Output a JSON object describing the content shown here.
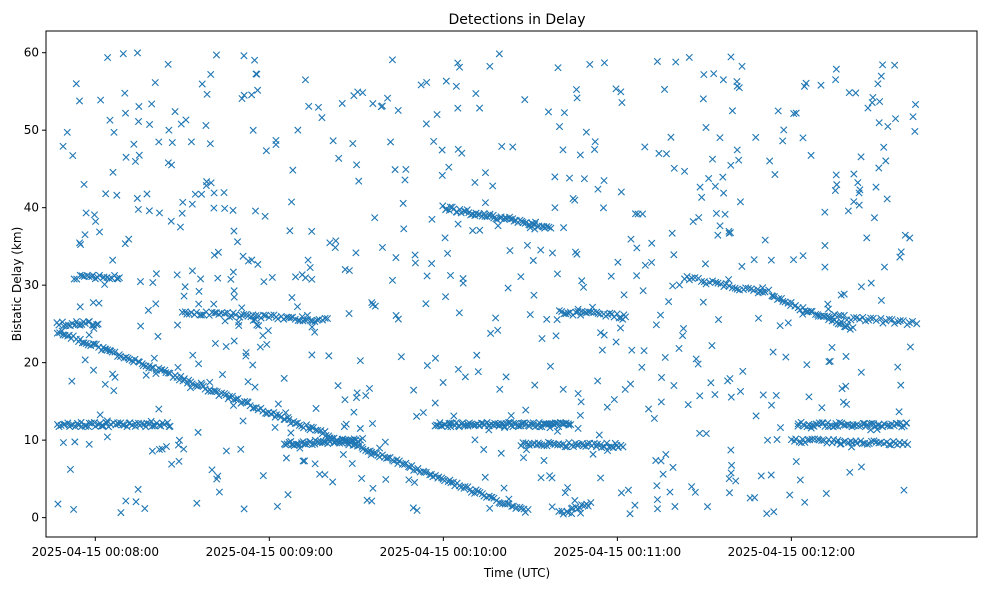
{
  "chart_data": {
    "type": "scatter",
    "title": "Detections in Delay",
    "xlabel": "Time (UTC)",
    "ylabel": "Bistatic Delay (km)",
    "marker": "x",
    "color": "#1f77b4",
    "grid": false,
    "legend": false,
    "xlim": [
      "2025-04-15 00:07:43",
      "2025-04-15 00:13:04"
    ],
    "ylim": [
      -2.5,
      62.8
    ],
    "x_ticks": [
      "2025-04-15 00:08:00",
      "2025-04-15 00:09:00",
      "2025-04-15 00:10:00",
      "2025-04-15 00:11:00",
      "2025-04-15 00:12:00"
    ],
    "y_ticks": [
      0,
      10,
      20,
      30,
      40,
      50,
      60
    ],
    "series_segments": [
      {
        "t_start": "2025-04-15 00:07:47",
        "t_end": "2025-04-15 00:10:29",
        "delay_start": 24.0,
        "delay_end": 0.8,
        "count": 230
      },
      {
        "t_start": "2025-04-15 00:10:00",
        "t_end": "2025-04-15 00:10:37",
        "delay_start": 40.0,
        "delay_end": 37.5,
        "count": 60
      },
      {
        "t_start": "2025-04-15 00:11:23",
        "t_end": "2025-04-15 00:11:51",
        "delay_start": 31.0,
        "delay_end": 29.0,
        "count": 30
      },
      {
        "t_start": "2025-04-15 00:11:53",
        "t_end": "2025-04-15 00:12:21",
        "delay_start": 28.5,
        "delay_end": 24.5,
        "count": 40
      },
      {
        "t_start": "2025-04-15 00:10:40",
        "t_end": "2025-04-15 00:10:51",
        "delay_start": 0.5,
        "delay_end": 1.8,
        "count": 15
      },
      {
        "t_start": "2025-04-15 00:07:47",
        "t_end": "2025-04-15 00:08:26",
        "delay_start": 12.0,
        "delay_end": 12.0,
        "count": 60
      },
      {
        "t_start": "2025-04-15 00:09:57",
        "t_end": "2025-04-15 00:10:44",
        "delay_start": 12.0,
        "delay_end": 12.0,
        "count": 90
      },
      {
        "t_start": "2025-04-15 00:12:02",
        "t_end": "2025-04-15 00:12:40",
        "delay_start": 12.0,
        "delay_end": 12.0,
        "count": 60
      },
      {
        "t_start": "2025-04-15 00:09:05",
        "t_end": "2025-04-15 00:09:32",
        "delay_start": 9.5,
        "delay_end": 10.0,
        "count": 50
      },
      {
        "t_start": "2025-04-15 00:10:27",
        "t_end": "2025-04-15 00:11:02",
        "delay_start": 9.5,
        "delay_end": 9.3,
        "count": 50
      },
      {
        "t_start": "2025-04-15 00:12:00",
        "t_end": "2025-04-15 00:12:40",
        "delay_start": 10.0,
        "delay_end": 9.5,
        "count": 50
      },
      {
        "t_start": "2025-04-15 00:08:30",
        "t_end": "2025-04-15 00:09:20",
        "delay_start": 26.5,
        "delay_end": 25.5,
        "count": 60
      },
      {
        "t_start": "2025-04-15 00:10:40",
        "t_end": "2025-04-15 00:11:03",
        "delay_start": 26.5,
        "delay_end": 26.0,
        "count": 30
      },
      {
        "t_start": "2025-04-15 00:12:13",
        "t_end": "2025-04-15 00:12:43",
        "delay_start": 26.0,
        "delay_end": 25.0,
        "count": 30
      },
      {
        "t_start": "2025-04-15 00:07:53",
        "t_end": "2025-04-15 00:08:08",
        "delay_start": 31.0,
        "delay_end": 31.0,
        "count": 20
      },
      {
        "t_start": "2025-04-15 00:07:47",
        "t_end": "2025-04-15 00:08:01",
        "delay_start": 25.0,
        "delay_end": 25.0,
        "count": 20
      }
    ],
    "background_detections": {
      "t_start": "2025-04-15 00:07:47",
      "t_end": "2025-04-15 00:12:43",
      "delay_min": 0.5,
      "delay_max": 60,
      "count": 700
    }
  }
}
